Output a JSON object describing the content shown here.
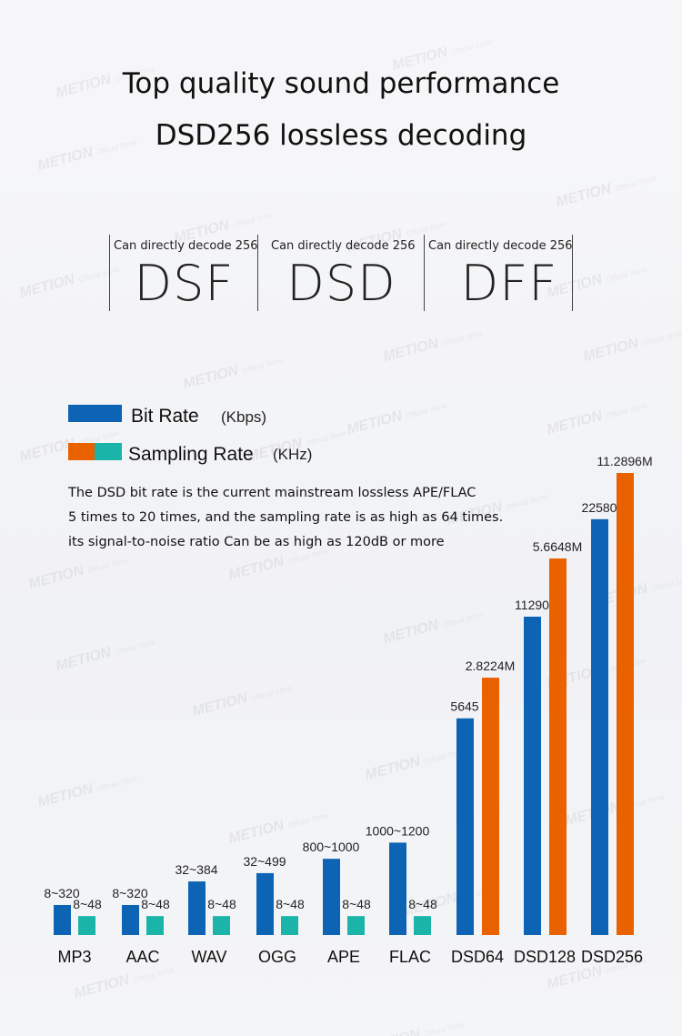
{
  "header": {
    "title_line1": "Top quality sound performance",
    "title_line2": "DSD256 lossless decoding"
  },
  "formats": [
    {
      "caption": "Can directly decode 256",
      "name": "DSF"
    },
    {
      "caption": "Can directly decode 256",
      "name": "DSD"
    },
    {
      "caption": "Can directly decode 256",
      "name": "DFF"
    }
  ],
  "legend": {
    "bit_rate": "Bit Rate",
    "bit_rate_unit": "(Kbps)",
    "sampling_rate": "Sampling Rate",
    "sampling_rate_unit": "(KHz)"
  },
  "description": [
    "The DSD bit rate is the current mainstream lossless APE/FLAC",
    "5 times to 20 times, and the sampling rate is as high as 64 times.",
    "its signal-to-noise ratio Can be as high as 120dB or more"
  ],
  "watermark": "METION Official Store",
  "colors": {
    "bit_rate": "#0e64b4",
    "sampling_pcm": "#1ab5a8",
    "sampling_dsd": "#ea6100"
  },
  "chart_data": {
    "type": "bar",
    "categories": [
      "MP3",
      "AAC",
      "WAV",
      "OGG",
      "APE",
      "FLAC",
      "DSD64",
      "DSD128",
      "DSD256"
    ],
    "series": [
      {
        "name": "Bit Rate (Kbps)",
        "labels": [
          "8~320",
          "8~320",
          "32~384",
          "32~499",
          "800~1000",
          "1000~1200",
          "5645",
          "11290",
          "22580"
        ],
        "display_level": [
          6.5,
          6.5,
          11.6,
          13.4,
          16.5,
          20,
          46.9,
          68.9,
          90
        ]
      },
      {
        "name": "Sampling Rate (KHz)",
        "labels": [
          "8~48",
          "8~48",
          "8~48",
          "8~48",
          "8~48",
          "8~48",
          "2.8224M",
          "5.6648M",
          "11.2896M"
        ],
        "display_level": [
          4.1,
          4.1,
          4.1,
          4.1,
          4.1,
          4.1,
          55.7,
          81.5,
          100
        ]
      }
    ]
  }
}
